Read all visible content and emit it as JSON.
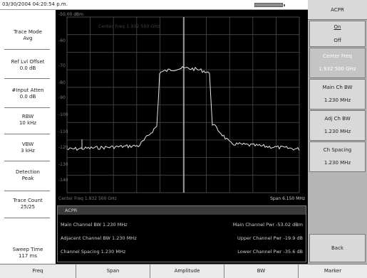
{
  "status": {
    "timestamp": "03/30/2004 04:20:54 p.m."
  },
  "icons": {
    "battery": "battery-icon"
  },
  "left_panel": {
    "items": [
      {
        "label": "Trace Mode",
        "value": "Avg"
      },
      {
        "label": "Ref Lvl Offset",
        "value": "0.0 dB"
      },
      {
        "label": "#Input Atten",
        "value": "0.0 dB"
      },
      {
        "label": "RBW",
        "value": "10 kHz"
      },
      {
        "label": "VBW",
        "value": "3 kHz"
      },
      {
        "label": "Detection",
        "value": "Peak"
      },
      {
        "label": "Trace Count",
        "value": "25/25"
      },
      {
        "label": "Sweep Time",
        "value": "117 ms"
      }
    ]
  },
  "plot": {
    "ref_level": "-50.00 dBm",
    "center_freq_overlay": "Center Freq 1.932 500 GHz",
    "y_axis_labels": [
      "-60",
      "-70",
      "-80",
      "-90",
      "-100",
      "-110",
      "-120",
      "-130",
      "-140"
    ],
    "center_freq_label": "Center Freq 1.932 500 GHz",
    "span_label": "Span 6.150 MHz",
    "colors": {
      "background": "#000000",
      "grid": "#4a4a4a",
      "trace": "#e6e6e6",
      "marker_line": "#d8d8d8"
    }
  },
  "results": {
    "title": "ACPR",
    "main_bw": "Main Channel BW 1.230 MHz",
    "adj_bw": "Adjacent Channel BW 1.230 MHz",
    "spacing": "Channel Spacing 1.230 MHz",
    "main_pwr": "Main Channel Pwr -53.02 dBm",
    "upper_pwr": "Upper Channel Pwr -19.9 dB",
    "lower_pwr": "Lower Channel Pwr -35.6 dB"
  },
  "right_panel": {
    "title": "ACPR",
    "onoff": {
      "on": "On",
      "off": "Off"
    },
    "keys": [
      {
        "label": "Center Freq",
        "value": "1.932 500 GHz"
      },
      {
        "label": "Main Ch BW",
        "value": "1.230 MHz"
      },
      {
        "label": "Adj Ch BW",
        "value": "1.230 MHz"
      },
      {
        "label": "Ch Spacing",
        "value": "1.230 MHz"
      }
    ],
    "back": "Back"
  },
  "bottom_bar": {
    "keys": [
      "Freq",
      "Span",
      "Amplitude",
      "BW",
      "Marker"
    ]
  }
}
